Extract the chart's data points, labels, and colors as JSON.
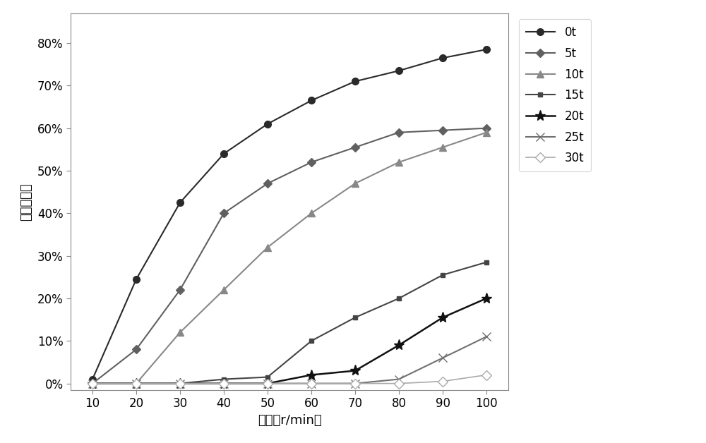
{
  "x": [
    10,
    20,
    30,
    40,
    50,
    60,
    70,
    80,
    90,
    100
  ],
  "series": [
    {
      "label": "0t",
      "values": [
        0.01,
        0.245,
        0.425,
        0.54,
        0.61,
        0.665,
        0.71,
        0.735,
        0.765,
        0.785
      ],
      "color": "#2a2a2a",
      "marker": "o",
      "markersize": 7,
      "linewidth": 1.5,
      "markerfacecolor": "#2a2a2a"
    },
    {
      "label": "5t",
      "values": [
        0.0,
        0.08,
        0.22,
        0.4,
        0.47,
        0.52,
        0.555,
        0.59,
        0.595,
        0.6
      ],
      "color": "#606060",
      "marker": "D",
      "markersize": 6,
      "linewidth": 1.5,
      "markerfacecolor": "#606060"
    },
    {
      "label": "10t",
      "values": [
        0.0,
        0.0,
        0.12,
        0.22,
        0.32,
        0.4,
        0.47,
        0.52,
        0.555,
        0.59
      ],
      "color": "#888888",
      "marker": "^",
      "markersize": 7,
      "linewidth": 1.5,
      "markerfacecolor": "#888888"
    },
    {
      "label": "15t",
      "values": [
        0.0,
        0.0,
        0.0,
        0.01,
        0.015,
        0.1,
        0.155,
        0.2,
        0.255,
        0.285
      ],
      "color": "#444444",
      "marker": "s",
      "markersize": 5,
      "linewidth": 1.5,
      "markerfacecolor": "#444444"
    },
    {
      "label": "20t",
      "values": [
        0.0,
        0.0,
        0.0,
        0.0,
        0.0,
        0.02,
        0.03,
        0.09,
        0.155,
        0.2
      ],
      "color": "#111111",
      "marker": "*",
      "markersize": 11,
      "linewidth": 1.8,
      "markerfacecolor": "#111111"
    },
    {
      "label": "25t",
      "values": [
        0.0,
        0.0,
        0.0,
        0.0,
        0.0,
        0.0,
        0.0,
        0.01,
        0.06,
        0.11
      ],
      "color": "#707070",
      "marker": "x",
      "markersize": 8,
      "linewidth": 1.5,
      "markerfacecolor": "#707070"
    },
    {
      "label": "30t",
      "values": [
        0.0,
        0.0,
        0.0,
        0.0,
        0.0,
        0.0,
        0.0,
        0.0,
        0.005,
        0.02
      ],
      "color": "#aaaaaa",
      "marker": "D",
      "markersize": 7,
      "linewidth": 1.2,
      "markerfacecolor": "white"
    }
  ],
  "xlabel": "转速（r/min）",
  "ylabel": "热影响系数",
  "xlim": [
    5,
    105
  ],
  "ylim": [
    -0.015,
    0.87
  ],
  "xticks": [
    10,
    20,
    30,
    40,
    50,
    60,
    70,
    80,
    90,
    100
  ],
  "yticks": [
    0.0,
    0.1,
    0.2,
    0.3,
    0.4,
    0.5,
    0.6,
    0.7,
    0.8
  ],
  "ytick_labels": [
    "0%",
    "10%",
    "20%",
    "30%",
    "40%",
    "50%",
    "60%",
    "70%",
    "80%"
  ],
  "figsize": [
    10.0,
    6.28
  ],
  "dpi": 100
}
